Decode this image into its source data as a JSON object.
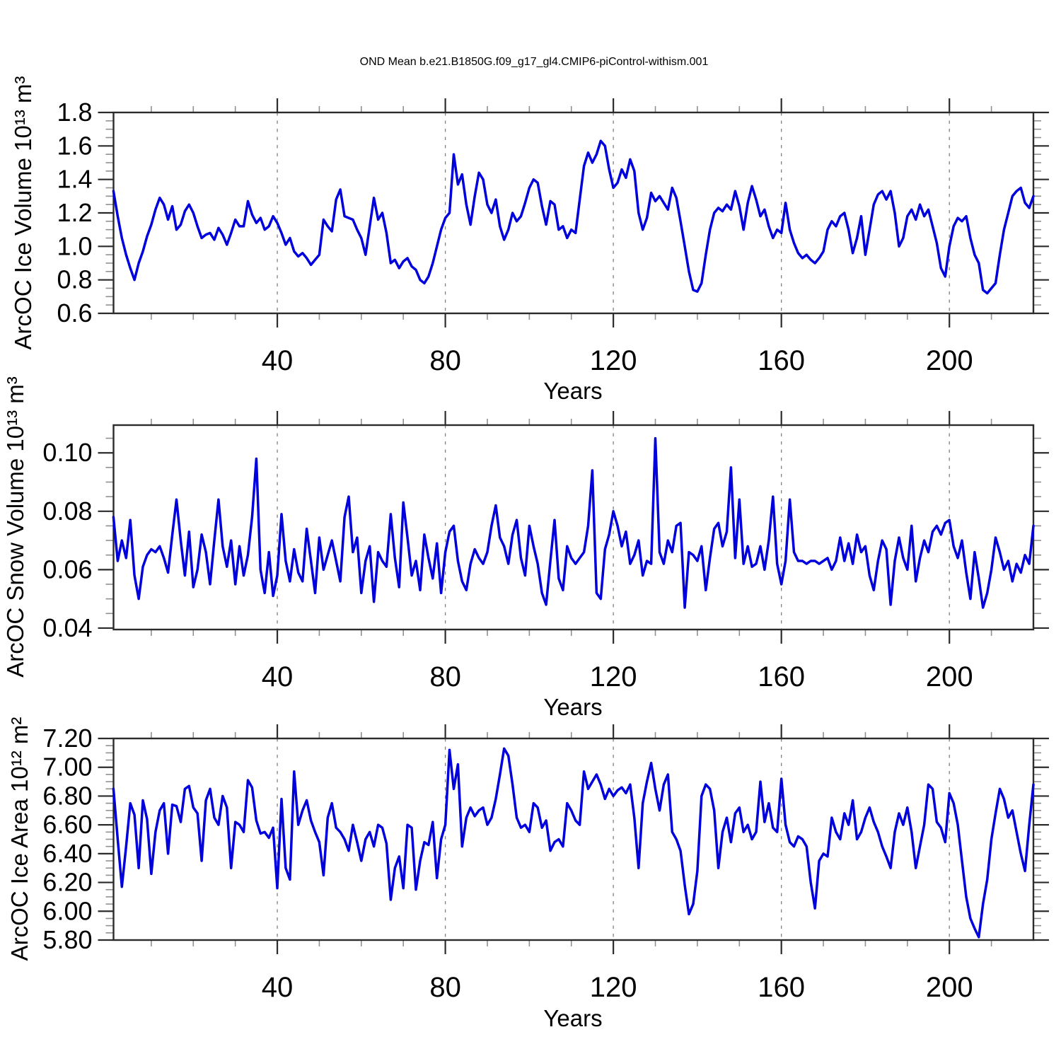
{
  "title": "OND Mean b.e21.B1850G.f09_g17_gl4.CMIP6-piControl-withism.001",
  "xlabel": "Years",
  "line_color": "#0000dd",
  "frame_color": "#2b2b2b",
  "major_tick_color": "#2b2b2b",
  "minor_tick_color": "#909090",
  "grid_color": "#808080",
  "x_axis": {
    "major_ticks": [
      40,
      80,
      120,
      160,
      200
    ],
    "minor_step": 10,
    "year_start": 1,
    "year_end": 220
  },
  "chart_data": [
    {
      "type": "line",
      "name": "ice-volume",
      "ylabel": "ArcOC Ice Volume 10¹³ m³",
      "xlabel": "Years",
      "ylim": [
        0.6,
        1.8
      ],
      "ytick_values": [
        0.6,
        0.8,
        1.0,
        1.2,
        1.4,
        1.6,
        1.8
      ],
      "ytick_labels": [
        "0.6",
        "0.8",
        "1.0",
        "1.2",
        "1.4",
        "1.6",
        "1.8"
      ],
      "yminor_step": 0.05,
      "x_start": 1,
      "x_step": 1,
      "values": [
        1.33,
        1.18,
        1.05,
        0.95,
        0.87,
        0.8,
        0.9,
        0.97,
        1.06,
        1.13,
        1.22,
        1.29,
        1.25,
        1.16,
        1.24,
        1.1,
        1.13,
        1.21,
        1.25,
        1.2,
        1.12,
        1.05,
        1.07,
        1.08,
        1.04,
        1.11,
        1.07,
        1.01,
        1.08,
        1.16,
        1.12,
        1.12,
        1.27,
        1.19,
        1.14,
        1.17,
        1.1,
        1.12,
        1.18,
        1.14,
        1.08,
        1.01,
        1.05,
        0.97,
        0.94,
        0.96,
        0.93,
        0.89,
        0.92,
        0.95,
        1.16,
        1.12,
        1.09,
        1.28,
        1.34,
        1.18,
        1.17,
        1.16,
        1.1,
        1.05,
        0.95,
        1.12,
        1.29,
        1.16,
        1.2,
        1.08,
        0.9,
        0.92,
        0.87,
        0.91,
        0.93,
        0.88,
        0.86,
        0.8,
        0.78,
        0.82,
        0.9,
        1.0,
        1.1,
        1.17,
        1.2,
        1.55,
        1.37,
        1.43,
        1.25,
        1.13,
        1.3,
        1.44,
        1.4,
        1.25,
        1.2,
        1.28,
        1.12,
        1.04,
        1.1,
        1.2,
        1.15,
        1.18,
        1.26,
        1.35,
        1.4,
        1.38,
        1.24,
        1.13,
        1.27,
        1.25,
        1.1,
        1.12,
        1.05,
        1.1,
        1.08,
        1.28,
        1.48,
        1.56,
        1.5,
        1.55,
        1.63,
        1.6,
        1.46,
        1.35,
        1.38,
        1.46,
        1.41,
        1.52,
        1.45,
        1.2,
        1.1,
        1.17,
        1.32,
        1.27,
        1.3,
        1.26,
        1.22,
        1.35,
        1.29,
        1.15,
        1.0,
        0.85,
        0.74,
        0.73,
        0.78,
        0.95,
        1.1,
        1.2,
        1.23,
        1.21,
        1.25,
        1.22,
        1.33,
        1.24,
        1.1,
        1.26,
        1.36,
        1.28,
        1.18,
        1.22,
        1.12,
        1.05,
        1.1,
        1.08,
        1.26,
        1.1,
        1.02,
        0.96,
        0.93,
        0.95,
        0.92,
        0.9,
        0.93,
        0.97,
        1.1,
        1.15,
        1.12,
        1.18,
        1.2,
        1.1,
        0.96,
        1.05,
        1.18,
        0.95,
        1.1,
        1.25,
        1.31,
        1.33,
        1.28,
        1.33,
        1.2,
        1.0,
        1.05,
        1.18,
        1.22,
        1.16,
        1.25,
        1.18,
        1.22,
        1.12,
        1.02,
        0.87,
        0.82,
        1.0,
        1.12,
        1.17,
        1.15,
        1.18,
        1.05,
        0.95,
        0.9,
        0.74,
        0.72,
        0.75,
        0.78,
        0.95,
        1.1,
        1.2,
        1.3,
        1.33,
        1.35,
        1.26,
        1.23,
        1.3
      ]
    },
    {
      "type": "line",
      "name": "snow-volume",
      "ylabel": "ArcOC Snow Volume 10¹³ m³",
      "xlabel": "Years",
      "ylim": [
        0.0395,
        0.1095
      ],
      "ytick_values": [
        0.04,
        0.06,
        0.08,
        0.1
      ],
      "ytick_labels": [
        "0.04",
        "0.06",
        "0.08",
        "0.10"
      ],
      "yminor_step": 0.005,
      "x_start": 1,
      "x_step": 1,
      "values": [
        0.078,
        0.063,
        0.07,
        0.064,
        0.077,
        0.058,
        0.05,
        0.061,
        0.065,
        0.067,
        0.066,
        0.068,
        0.064,
        0.059,
        0.072,
        0.084,
        0.07,
        0.058,
        0.073,
        0.054,
        0.06,
        0.072,
        0.066,
        0.055,
        0.07,
        0.084,
        0.068,
        0.061,
        0.07,
        0.055,
        0.068,
        0.058,
        0.065,
        0.078,
        0.098,
        0.06,
        0.052,
        0.066,
        0.051,
        0.058,
        0.079,
        0.063,
        0.056,
        0.067,
        0.059,
        0.056,
        0.074,
        0.063,
        0.052,
        0.071,
        0.06,
        0.065,
        0.07,
        0.063,
        0.056,
        0.078,
        0.085,
        0.066,
        0.071,
        0.052,
        0.063,
        0.068,
        0.049,
        0.066,
        0.063,
        0.061,
        0.079,
        0.064,
        0.054,
        0.083,
        0.071,
        0.058,
        0.063,
        0.053,
        0.072,
        0.064,
        0.057,
        0.069,
        0.052,
        0.066,
        0.073,
        0.075,
        0.063,
        0.056,
        0.053,
        0.062,
        0.067,
        0.064,
        0.062,
        0.066,
        0.075,
        0.082,
        0.071,
        0.068,
        0.062,
        0.072,
        0.077,
        0.064,
        0.058,
        0.075,
        0.068,
        0.062,
        0.052,
        0.048,
        0.063,
        0.077,
        0.057,
        0.053,
        0.068,
        0.064,
        0.062,
        0.064,
        0.066,
        0.075,
        0.094,
        0.052,
        0.05,
        0.067,
        0.072,
        0.08,
        0.075,
        0.068,
        0.073,
        0.062,
        0.065,
        0.07,
        0.058,
        0.063,
        0.062,
        0.105,
        0.066,
        0.062,
        0.07,
        0.066,
        0.075,
        0.076,
        0.047,
        0.066,
        0.065,
        0.063,
        0.068,
        0.053,
        0.064,
        0.074,
        0.076,
        0.068,
        0.073,
        0.095,
        0.064,
        0.084,
        0.062,
        0.068,
        0.061,
        0.062,
        0.068,
        0.06,
        0.07,
        0.085,
        0.062,
        0.055,
        0.063,
        0.084,
        0.066,
        0.063,
        0.063,
        0.062,
        0.063,
        0.063,
        0.062,
        0.063,
        0.064,
        0.06,
        0.063,
        0.071,
        0.063,
        0.069,
        0.062,
        0.072,
        0.066,
        0.068,
        0.058,
        0.053,
        0.063,
        0.07,
        0.067,
        0.048,
        0.063,
        0.071,
        0.064,
        0.06,
        0.075,
        0.056,
        0.064,
        0.07,
        0.066,
        0.073,
        0.075,
        0.072,
        0.076,
        0.077,
        0.068,
        0.064,
        0.07,
        0.059,
        0.05,
        0.066,
        0.057,
        0.047,
        0.052,
        0.06,
        0.071,
        0.066,
        0.06,
        0.063,
        0.056,
        0.062,
        0.059,
        0.065,
        0.062,
        0.075
      ]
    },
    {
      "type": "line",
      "name": "ice-area",
      "ylabel": "ArcOC Ice Area 10¹² m²",
      "xlabel": "Years",
      "ylim": [
        5.8,
        7.2
      ],
      "ytick_values": [
        5.8,
        6.0,
        6.2,
        6.4,
        6.6,
        6.8,
        7.0,
        7.2
      ],
      "ytick_labels": [
        "5.80",
        "6.00",
        "6.20",
        "6.40",
        "6.60",
        "6.80",
        "7.00",
        "7.20"
      ],
      "yminor_step": 0.05,
      "x_start": 1,
      "x_step": 1,
      "values": [
        6.85,
        6.5,
        6.17,
        6.45,
        6.75,
        6.67,
        6.3,
        6.77,
        6.64,
        6.26,
        6.55,
        6.7,
        6.75,
        6.4,
        6.74,
        6.73,
        6.62,
        6.85,
        6.87,
        6.72,
        6.68,
        6.35,
        6.77,
        6.85,
        6.65,
        6.6,
        6.8,
        6.72,
        6.3,
        6.62,
        6.6,
        6.55,
        6.91,
        6.86,
        6.63,
        6.54,
        6.55,
        6.51,
        6.58,
        6.16,
        6.78,
        6.3,
        6.22,
        6.97,
        6.6,
        6.7,
        6.77,
        6.63,
        6.55,
        6.48,
        6.25,
        6.65,
        6.75,
        6.58,
        6.55,
        6.5,
        6.42,
        6.6,
        6.48,
        6.35,
        6.5,
        6.55,
        6.45,
        6.6,
        6.58,
        6.47,
        6.08,
        6.3,
        6.38,
        6.16,
        6.6,
        6.58,
        6.15,
        6.35,
        6.48,
        6.46,
        6.62,
        6.23,
        6.5,
        6.6,
        7.12,
        6.85,
        7.02,
        6.45,
        6.65,
        6.72,
        6.66,
        6.7,
        6.72,
        6.6,
        6.65,
        6.78,
        6.95,
        7.13,
        7.08,
        6.88,
        6.65,
        6.58,
        6.6,
        6.55,
        6.75,
        6.72,
        6.58,
        6.63,
        6.42,
        6.48,
        6.5,
        6.45,
        6.75,
        6.7,
        6.63,
        6.6,
        6.97,
        6.85,
        6.9,
        6.95,
        6.88,
        6.78,
        6.85,
        6.8,
        6.84,
        6.86,
        6.82,
        6.88,
        6.65,
        6.3,
        6.75,
        6.9,
        7.03,
        6.85,
        6.7,
        6.88,
        6.95,
        6.55,
        6.5,
        6.42,
        6.18,
        5.98,
        6.05,
        6.28,
        6.8,
        6.88,
        6.85,
        6.7,
        6.3,
        6.55,
        6.65,
        6.48,
        6.68,
        6.72,
        6.55,
        6.6,
        6.5,
        6.55,
        6.9,
        6.62,
        6.75,
        6.58,
        6.55,
        6.92,
        6.6,
        6.48,
        6.45,
        6.52,
        6.5,
        6.45,
        6.2,
        6.02,
        6.35,
        6.4,
        6.38,
        6.65,
        6.55,
        6.5,
        6.68,
        6.6,
        6.77,
        6.5,
        6.55,
        6.65,
        6.72,
        6.62,
        6.55,
        6.45,
        6.38,
        6.3,
        6.55,
        6.68,
        6.6,
        6.72,
        6.55,
        6.3,
        6.45,
        6.6,
        6.88,
        6.85,
        6.62,
        6.58,
        6.48,
        6.82,
        6.75,
        6.6,
        6.35,
        6.1,
        5.95,
        5.88,
        5.82,
        6.05,
        6.22,
        6.5,
        6.68,
        6.85,
        6.78,
        6.65,
        6.7,
        6.55,
        6.4,
        6.28,
        6.6,
        6.88
      ]
    }
  ]
}
